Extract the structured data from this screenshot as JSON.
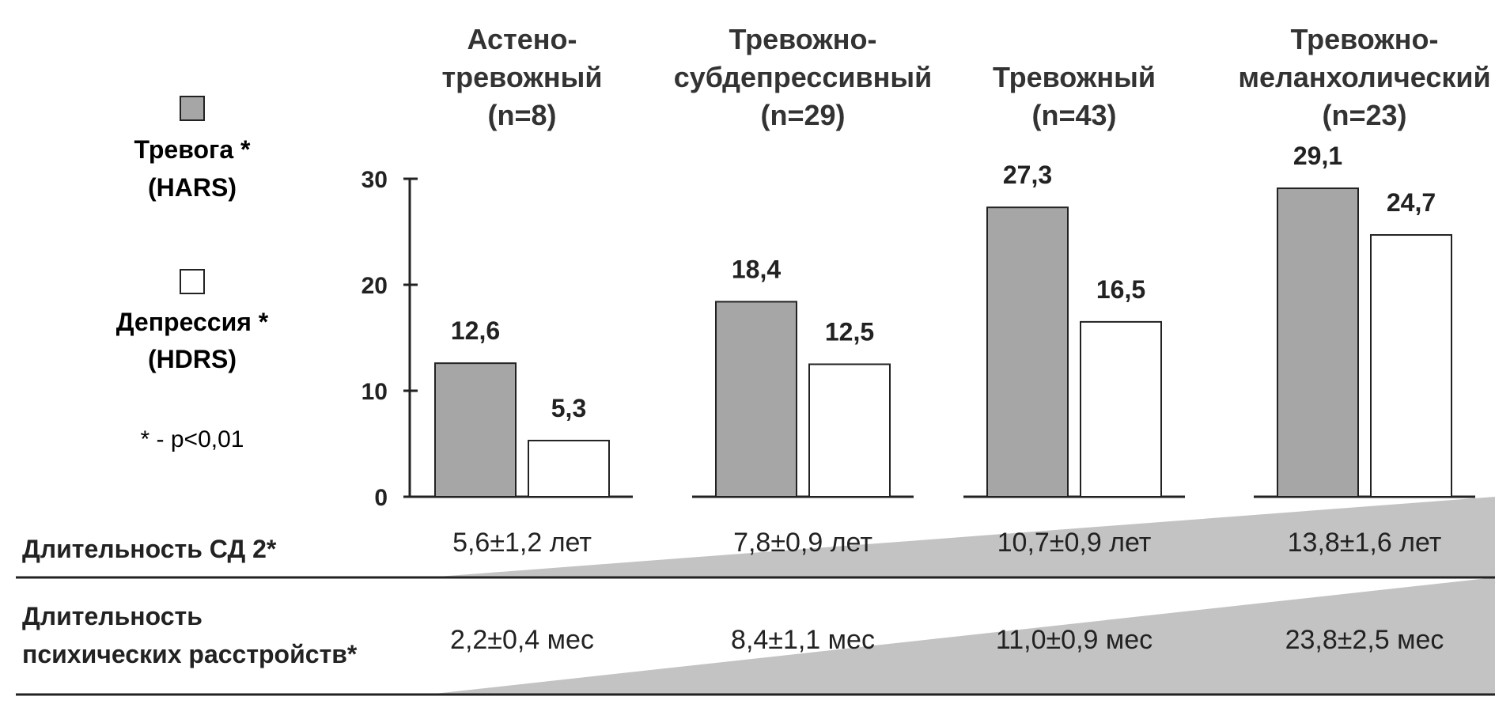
{
  "legend": {
    "anxiety_label": "Тревога *",
    "anxiety_scale": "(HARS)",
    "depression_label": "Депрессия *",
    "depression_scale": "(HDRS)",
    "note": "* - p<0,01"
  },
  "colors": {
    "anxiety": "#a6a6a6",
    "depression": "#ffffff",
    "wedge": "#c3c3c3",
    "line": "#222222"
  },
  "chart_data": {
    "type": "bar",
    "categories": [
      [
        "Астено-",
        "тревожный",
        "(n=8)"
      ],
      [
        "Тревожно-",
        "субдепрессивный",
        "(n=29)"
      ],
      [
        "Тревожный",
        "(n=43)"
      ],
      [
        "Тревожно-",
        "меланхолический",
        "(n=23)"
      ]
    ],
    "series": [
      {
        "name": "Тревога * (HARS)",
        "values": [
          12.6,
          18.4,
          27.3,
          29.1
        ],
        "labels": [
          "12,6",
          "18,4",
          "27,3",
          "29,1"
        ]
      },
      {
        "name": "Депрессия * (HDRS)",
        "values": [
          5.3,
          12.5,
          16.5,
          24.7
        ],
        "labels": [
          "5,3",
          "12,5",
          "16,5",
          "24,7"
        ]
      }
    ],
    "yticks": [
      "0",
      "10",
      "20",
      "30"
    ],
    "ylim": [
      0,
      30
    ],
    "grid": false,
    "legend_position": "left"
  },
  "table": {
    "rows": [
      {
        "label_lines": [
          "Длительность СД 2*"
        ],
        "values": [
          "5,6±1,2 лет",
          "7,8±0,9 лет",
          "10,7±0,9 лет",
          "13,8±1,6 лет"
        ]
      },
      {
        "label_lines": [
          "Длительность",
          "психических расстройств*"
        ],
        "values": [
          "2,2±0,4 мес",
          "8,4±1,1 мес",
          "11,0±0,9 мес",
          "23,8±2,5 мес"
        ]
      }
    ]
  }
}
